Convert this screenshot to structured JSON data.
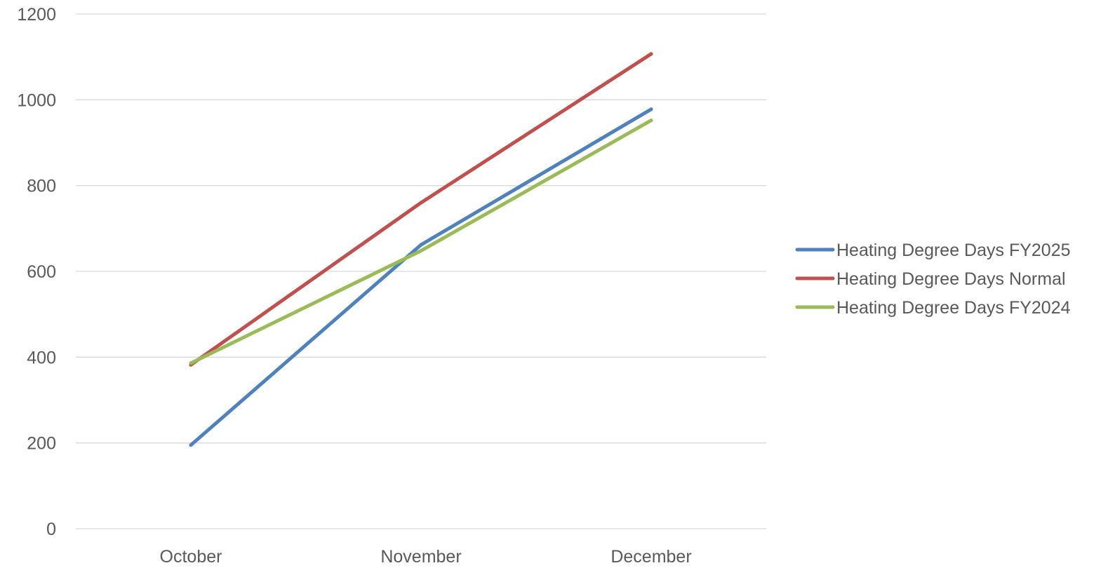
{
  "chart_data": {
    "type": "line",
    "categories": [
      "October",
      "November",
      "December"
    ],
    "series": [
      {
        "name": "Heating Degree Days FY2025",
        "values": [
          195,
          662,
          978
        ],
        "color": "#4f81bd"
      },
      {
        "name": "Heating Degree Days Normal",
        "values": [
          382,
          760,
          1107
        ],
        "color": "#c0504d"
      },
      {
        "name": "Heating Degree Days FY2024",
        "values": [
          386,
          648,
          952
        ],
        "color": "#9bbb59"
      }
    ],
    "title": "",
    "xlabel": "",
    "ylabel": "",
    "ylim": [
      0,
      1200
    ],
    "yticks": [
      0,
      200,
      400,
      600,
      800,
      1000,
      1200
    ],
    "grid": true,
    "legend_position": "right"
  }
}
